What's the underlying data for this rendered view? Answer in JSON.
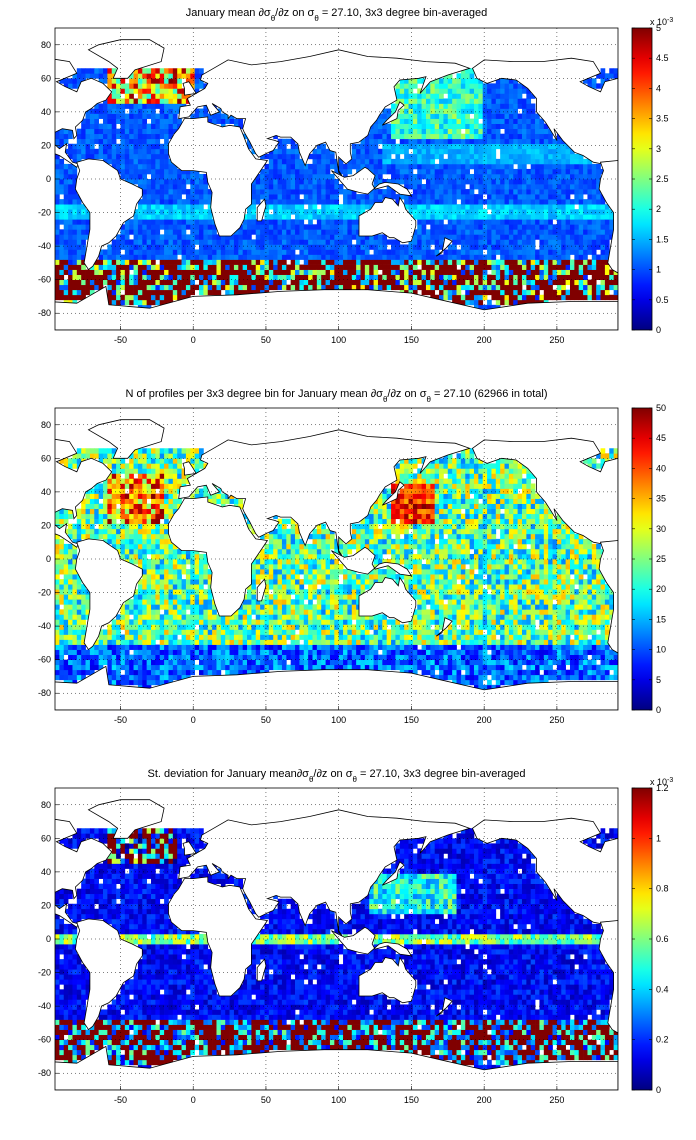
{
  "panels": [
    {
      "id": "mean",
      "title": "January mean ∂σθ/∂z on σθ = 27.10, 3x3 degree bin-averaged",
      "title_parts": {
        "pre": "January mean ∂σ",
        "sub1": "θ",
        "mid": "/∂z on σ",
        "sub2": "θ",
        "post": " = 27.10, 3x3 degree bin-averaged"
      },
      "colorbar": {
        "min": 0,
        "max": 5,
        "ticks": [
          "0",
          "0.5",
          "1",
          "1.5",
          "2",
          "2.5",
          "3",
          "3.5",
          "4",
          "4.5",
          "5"
        ],
        "exponent_label": "x 10",
        "exponent": "-3"
      },
      "pattern": "mean"
    },
    {
      "id": "count",
      "title": "N of profiles per 3x3 degree bin for January mean ∂σθ/∂z on σθ = 27.10 (62966 in total)",
      "title_parts": {
        "pre": "N of profiles per 3x3 degree bin for January mean ∂σ",
        "sub1": "θ",
        "mid": "/∂z on σ",
        "sub2": "θ",
        "post": " = 27.10 (62966 in total)"
      },
      "colorbar": {
        "min": 0,
        "max": 50,
        "ticks": [
          "0",
          "5",
          "10",
          "15",
          "20",
          "25",
          "30",
          "35",
          "40",
          "45",
          "50"
        ],
        "exponent_label": "",
        "exponent": ""
      },
      "pattern": "count"
    },
    {
      "id": "std",
      "title": "St. deviation for January mean∂σθ/∂z on σθ = 27.10, 3x3 degree bin-averaged",
      "title_parts": {
        "pre": "St. deviation for January mean∂σ",
        "sub1": "θ",
        "mid": "/∂z on σ",
        "sub2": "θ",
        "post": " = 27.10, 3x3 degree bin-averaged"
      },
      "colorbar": {
        "min": 0,
        "max": 1.2,
        "ticks": [
          "0",
          "0.2",
          "0.4",
          "0.6",
          "0.8",
          "1",
          "1.2"
        ],
        "exponent_label": "x 10",
        "exponent": "-3"
      },
      "pattern": "std"
    }
  ],
  "map_axes": {
    "lon_range": [
      -95,
      292
    ],
    "lat_range": [
      -90,
      90
    ],
    "x_ticks": [
      "-50",
      "0",
      "50",
      "100",
      "150",
      "200",
      "250"
    ],
    "y_ticks": [
      "80",
      "60",
      "40",
      "20",
      "0",
      "-20",
      "-40",
      "-60",
      "-80"
    ],
    "bin_size_deg": 3,
    "grid": "dotted"
  },
  "colormap": "jet"
}
